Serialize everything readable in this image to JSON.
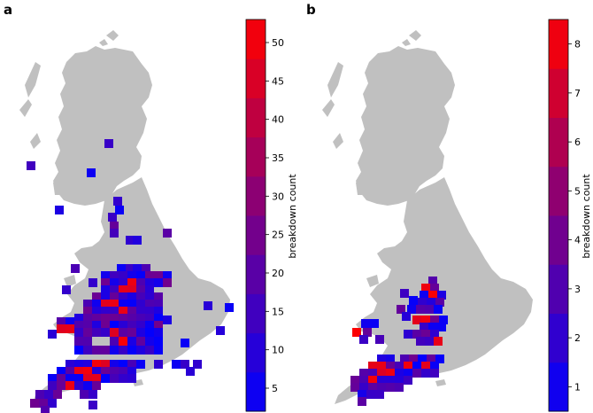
{
  "colors": {
    "land": "#c0c0c0",
    "low": "#0000ff",
    "high": "#ff0000"
  },
  "panels": [
    {
      "label": "a",
      "colorbar": {
        "label": "breakdown count",
        "range": [
          2,
          53
        ],
        "ticks": [
          "5",
          "10",
          "15",
          "20",
          "25",
          "30",
          "35",
          "40",
          "45",
          "50"
        ],
        "tick_values": [
          5,
          10,
          15,
          20,
          25,
          30,
          35,
          40,
          45,
          50
        ]
      }
    },
    {
      "label": "b",
      "colorbar": {
        "label": "breakdown count",
        "range": [
          0.5,
          8.5
        ],
        "ticks": [
          "1",
          "2",
          "3",
          "4",
          "5",
          "6",
          "7",
          "8"
        ],
        "tick_values": [
          1,
          2,
          3,
          4,
          5,
          6,
          7,
          8
        ]
      }
    }
  ]
}
